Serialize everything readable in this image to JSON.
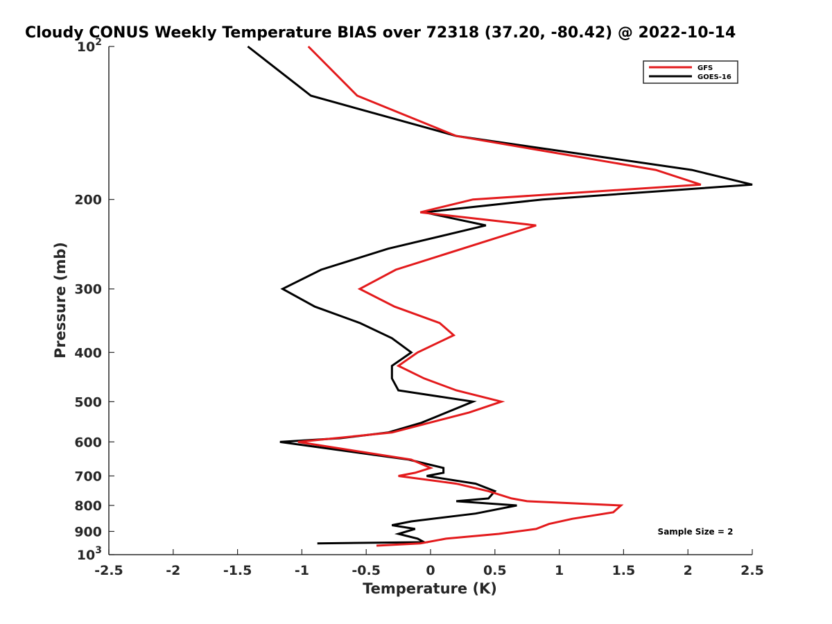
{
  "chart_data": {
    "type": "line",
    "title": "Cloudy CONUS Weekly Temperature BIAS over 72318 (37.20, -80.42) @ 2022-10-14",
    "xlabel": "Temperature (K)",
    "ylabel": "Pressure (mb)",
    "xlim": [
      -2.5,
      2.5
    ],
    "ylim": [
      100,
      1000
    ],
    "y_scale": "log",
    "y_reversed": true,
    "grid": false,
    "legend_position": "top-right",
    "x_ticks": [
      "-2.5",
      "-2",
      "-1.5",
      "-1",
      "-0.5",
      "0",
      "0.5",
      "1",
      "1.5",
      "2",
      "2.5"
    ],
    "y_ticks": [
      {
        "value": 100,
        "base": "10",
        "exp": "2"
      },
      {
        "value": 200,
        "label": "200"
      },
      {
        "value": 300,
        "label": "300"
      },
      {
        "value": 400,
        "label": "400"
      },
      {
        "value": 500,
        "label": "500"
      },
      {
        "value": 600,
        "label": "600"
      },
      {
        "value": 700,
        "label": "700"
      },
      {
        "value": 800,
        "label": "800"
      },
      {
        "value": 900,
        "label": "900"
      },
      {
        "value": 1000,
        "base": "10",
        "exp": "3"
      }
    ],
    "series": [
      {
        "name": "GFS",
        "color": "#e31a1c",
        "points": [
          [
            -0.95,
            100
          ],
          [
            -0.57,
            125
          ],
          [
            0.2,
            150
          ],
          [
            1.75,
            175
          ],
          [
            2.1,
            187
          ],
          [
            0.33,
            200
          ],
          [
            -0.08,
            212
          ],
          [
            0.82,
            225
          ],
          [
            -0.27,
            275
          ],
          [
            -0.55,
            300
          ],
          [
            -0.28,
            325
          ],
          [
            0.07,
            350
          ],
          [
            0.18,
            370
          ],
          [
            -0.1,
            400
          ],
          [
            -0.25,
            425
          ],
          [
            -0.05,
            450
          ],
          [
            0.2,
            475
          ],
          [
            0.55,
            500
          ],
          [
            0.3,
            525
          ],
          [
            -0.3,
            575
          ],
          [
            -1.03,
            600
          ],
          [
            -0.15,
            650
          ],
          [
            0.0,
            675
          ],
          [
            -0.12,
            690
          ],
          [
            -0.25,
            700
          ],
          [
            0.2,
            725
          ],
          [
            0.45,
            750
          ],
          [
            0.63,
            775
          ],
          [
            0.75,
            785
          ],
          [
            1.48,
            800
          ],
          [
            1.42,
            825
          ],
          [
            1.1,
            850
          ],
          [
            0.92,
            870
          ],
          [
            0.82,
            890
          ],
          [
            0.53,
            910
          ],
          [
            0.12,
            930
          ],
          [
            -0.08,
            950
          ],
          [
            -0.42,
            960
          ]
        ]
      },
      {
        "name": "GOES-16",
        "color": "#000000",
        "points": [
          [
            -1.42,
            100
          ],
          [
            -0.93,
            125
          ],
          [
            0.2,
            150
          ],
          [
            2.03,
            175
          ],
          [
            2.5,
            187
          ],
          [
            0.87,
            200
          ],
          [
            -0.05,
            212
          ],
          [
            0.43,
            225
          ],
          [
            -0.33,
            250
          ],
          [
            -0.85,
            275
          ],
          [
            -1.15,
            300
          ],
          [
            -0.9,
            325
          ],
          [
            -0.55,
            350
          ],
          [
            -0.3,
            375
          ],
          [
            -0.15,
            400
          ],
          [
            -0.3,
            425
          ],
          [
            -0.3,
            450
          ],
          [
            -0.25,
            475
          ],
          [
            0.33,
            500
          ],
          [
            -0.07,
            550
          ],
          [
            -0.33,
            575
          ],
          [
            -0.7,
            590
          ],
          [
            -1.17,
            600
          ],
          [
            -0.17,
            650
          ],
          [
            0.1,
            675
          ],
          [
            0.1,
            690
          ],
          [
            -0.03,
            700
          ],
          [
            0.35,
            725
          ],
          [
            0.5,
            750
          ],
          [
            0.45,
            775
          ],
          [
            0.2,
            785
          ],
          [
            0.67,
            800
          ],
          [
            0.35,
            830
          ],
          [
            -0.15,
            860
          ],
          [
            -0.3,
            875
          ],
          [
            -0.12,
            890
          ],
          [
            -0.25,
            910
          ],
          [
            -0.1,
            930
          ],
          [
            -0.05,
            945
          ],
          [
            -0.88,
            950
          ]
        ]
      }
    ],
    "annotations": [
      "Sample Size = 2"
    ]
  }
}
